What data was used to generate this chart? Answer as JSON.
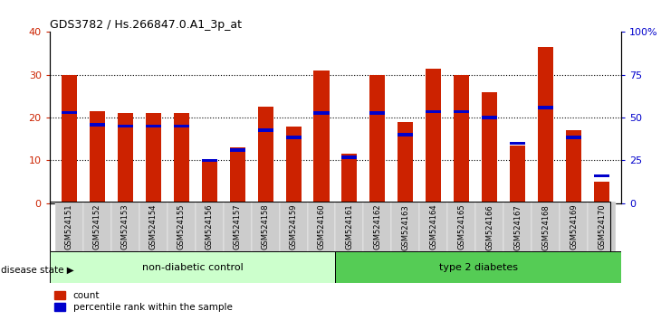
{
  "title": "GDS3782 / Hs.266847.0.A1_3p_at",
  "samples": [
    "GSM524151",
    "GSM524152",
    "GSM524153",
    "GSM524154",
    "GSM524155",
    "GSM524156",
    "GSM524157",
    "GSM524158",
    "GSM524159",
    "GSM524160",
    "GSM524161",
    "GSM524162",
    "GSM524163",
    "GSM524164",
    "GSM524165",
    "GSM524166",
    "GSM524167",
    "GSM524168",
    "GSM524169",
    "GSM524170"
  ],
  "count_values": [
    30,
    21.5,
    21,
    21,
    21,
    10,
    13,
    22.5,
    18,
    31,
    11.5,
    30,
    19,
    31.5,
    30,
    26,
    13.5,
    36.5,
    17,
    5
  ],
  "percentile_right": [
    53,
    46,
    45,
    45,
    45,
    25,
    31,
    42.5,
    38.5,
    52.5,
    27,
    52.5,
    40,
    53.5,
    53.5,
    50,
    35,
    56,
    38.5,
    16
  ],
  "non_diabetic_count": 10,
  "type2_count": 10,
  "group1_label": "non-diabetic control",
  "group2_label": "type 2 diabetes",
  "disease_state_label": "disease state",
  "ylim_left": [
    0,
    40
  ],
  "ylim_right": [
    0,
    100
  ],
  "yticks_left": [
    0,
    10,
    20,
    30,
    40
  ],
  "yticks_right": [
    0,
    25,
    50,
    75,
    100
  ],
  "yticklabels_right": [
    "0",
    "25",
    "50",
    "75",
    "100%"
  ],
  "bar_color_red": "#CC2200",
  "bar_color_blue": "#0000CC",
  "group1_bg": "#CCFFCC",
  "group2_bg": "#55CC55",
  "xlabel_bg": "#CCCCCC",
  "legend_count": "count",
  "legend_pct": "percentile rank within the sample"
}
